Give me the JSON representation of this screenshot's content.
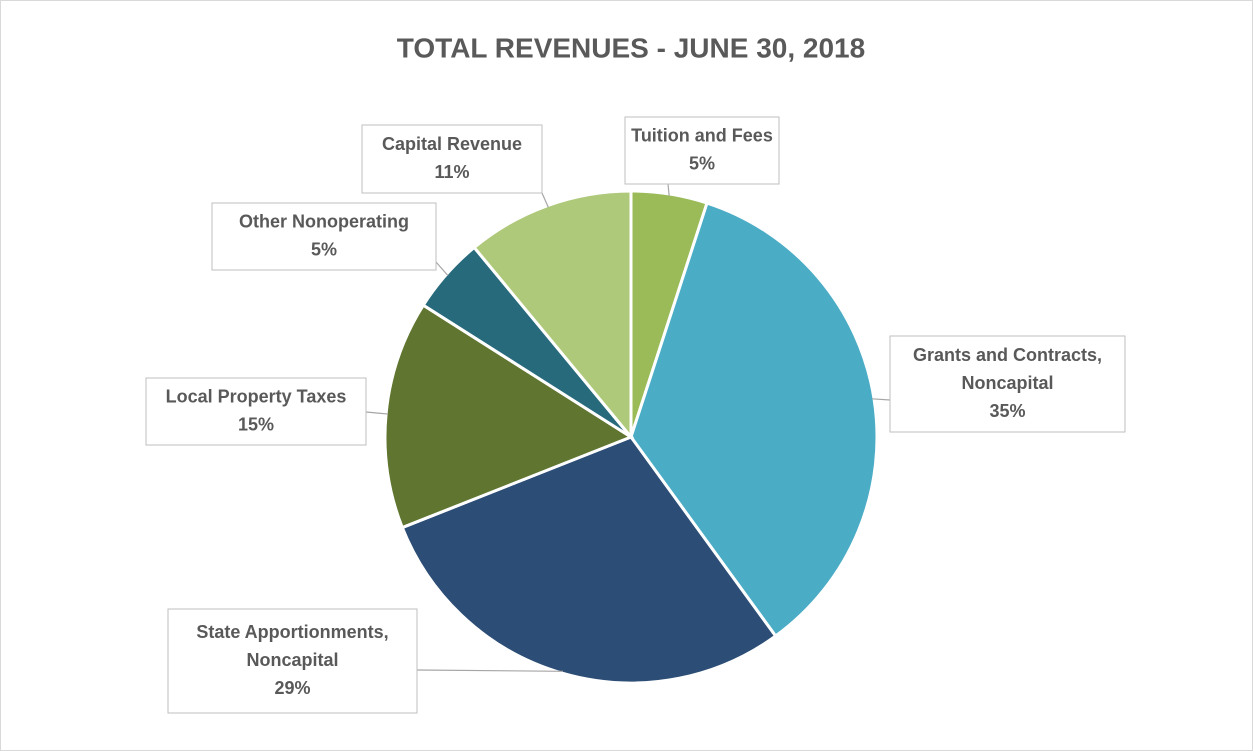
{
  "chart_data": {
    "type": "pie",
    "title": "TOTAL REVENUES - JUNE 30, 2018",
    "categories": [
      "Tuition and Fees",
      "Grants and Contracts, Noncapital",
      "State Apportionments, Noncapital",
      "Local Property Taxes",
      "Other Nonoperating",
      "Capital Revenue"
    ],
    "values": [
      5,
      35,
      29,
      15,
      5,
      11
    ],
    "value_labels": [
      "5%",
      "35%",
      "29%",
      "15%",
      "5%",
      "11%"
    ],
    "colors": [
      "#9bbb59",
      "#4bacc6",
      "#2c4d75",
      "#5f7530",
      "#276a7c",
      "#afc97a"
    ]
  }
}
